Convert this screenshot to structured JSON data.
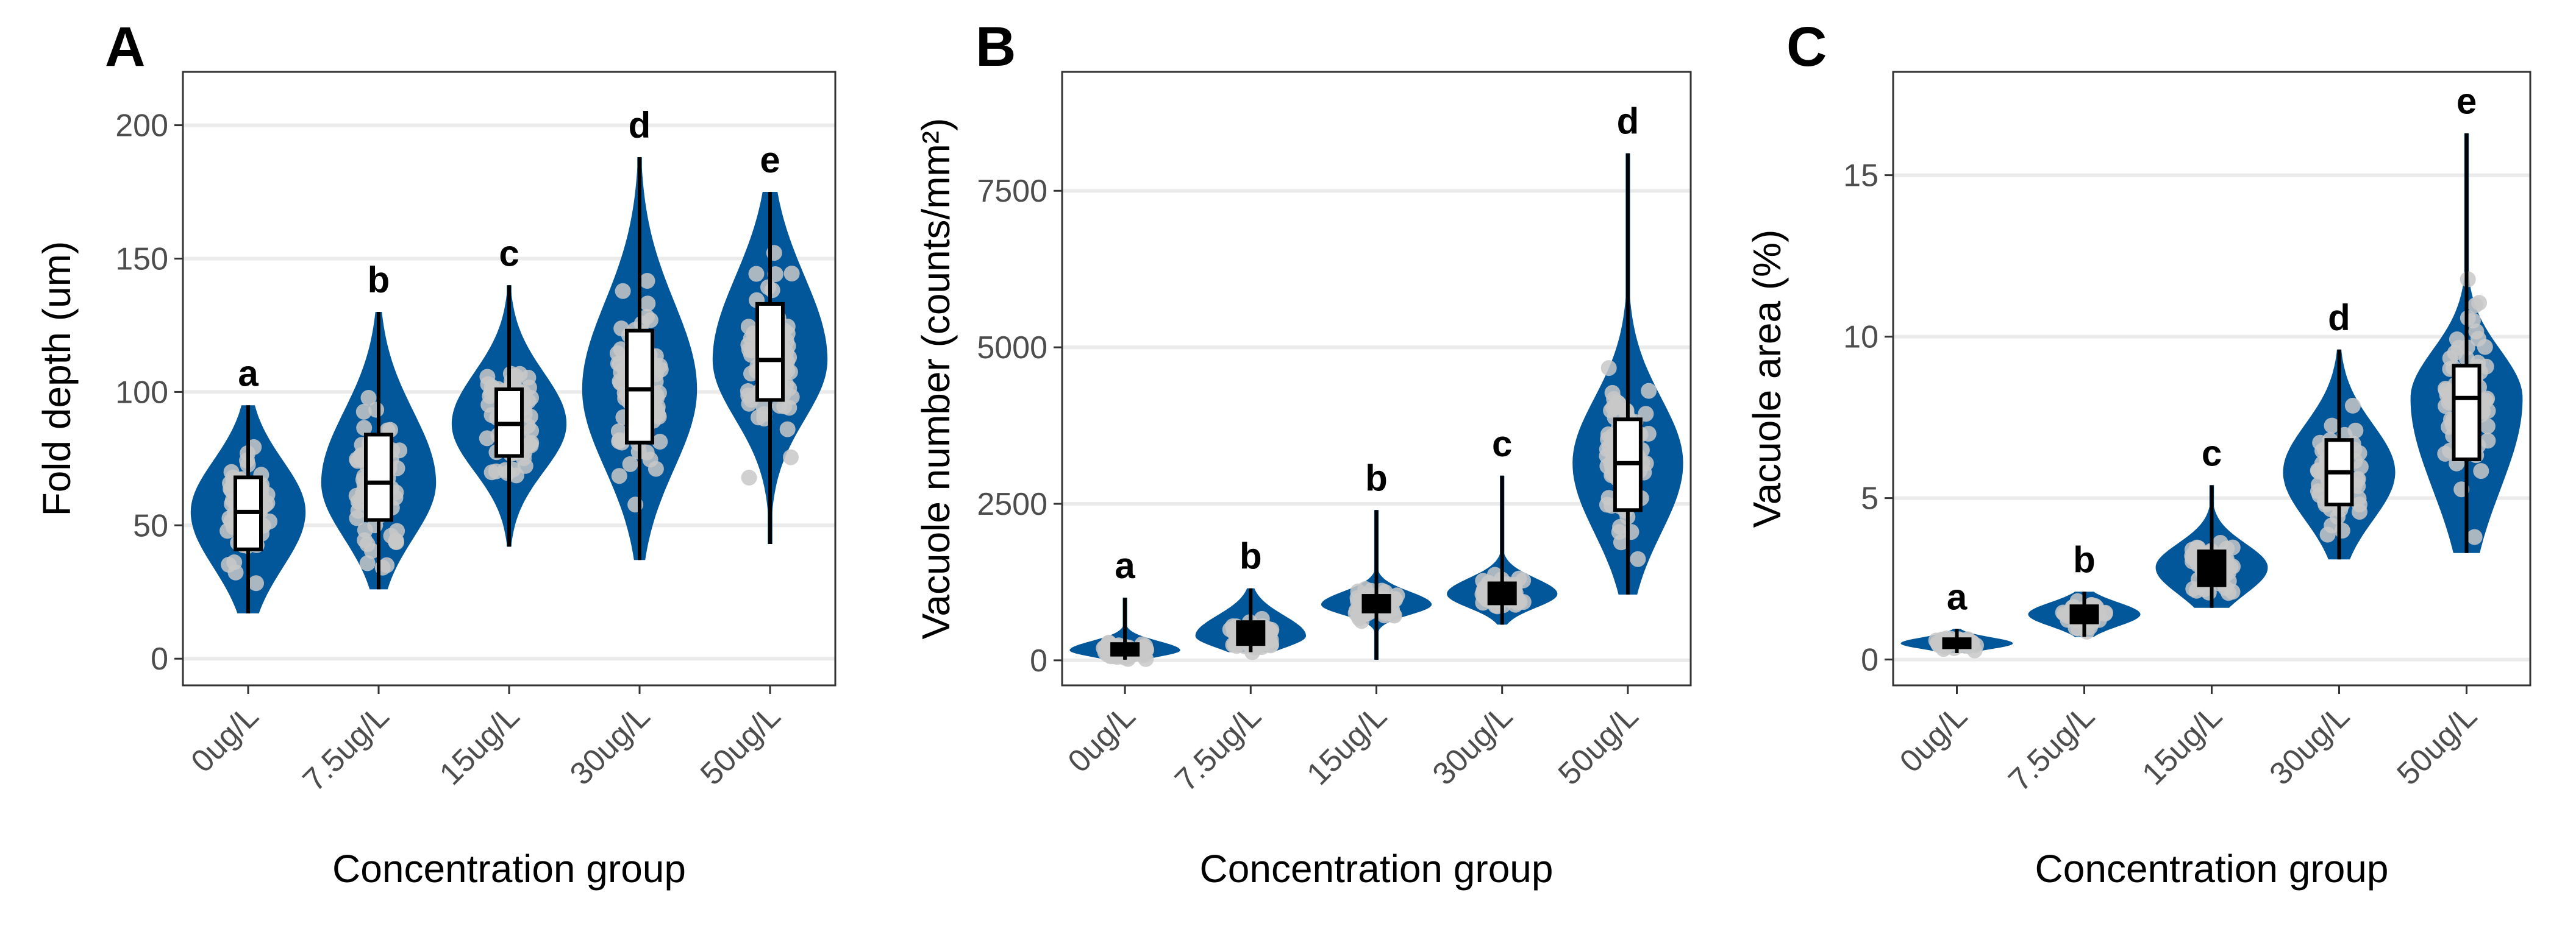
{
  "colors": {
    "violin": "#02569a",
    "point": "#c8c8c8",
    "box_fill": "#ffffff",
    "box_filled_small": "#000000",
    "grid": "#ebebeb",
    "frame": "#333333"
  },
  "chart_data": [
    {
      "type": "violin",
      "panel_label": "A",
      "xlabel": "Concentration group",
      "ylabel": "Fold depth (um)",
      "categories": [
        "0ug/L",
        "7.5ug/L",
        "15ug/L",
        "30ug/L",
        "50ug/L"
      ],
      "ylim": [
        -10,
        220
      ],
      "yticks": [
        0,
        50,
        100,
        150,
        200
      ],
      "ytick_labels": [
        "0",
        "50",
        "100",
        "150",
        "200"
      ],
      "grid": true,
      "groups": [
        {
          "min": 17,
          "q1": 41,
          "median": 55,
          "q3": 68,
          "max": 95,
          "letter": "a",
          "n_points": 60
        },
        {
          "min": 26,
          "q1": 52,
          "median": 66,
          "q3": 84,
          "max": 130,
          "letter": "b",
          "n_points": 70
        },
        {
          "min": 42,
          "q1": 76,
          "median": 88,
          "q3": 101,
          "max": 140,
          "letter": "c",
          "n_points": 70
        },
        {
          "min": 37,
          "q1": 81,
          "median": 101,
          "q3": 123,
          "max": 188,
          "letter": "d",
          "n_points": 80
        },
        {
          "min": 43,
          "q1": 97,
          "median": 112,
          "q3": 133,
          "max": 175,
          "letter": "e",
          "n_points": 75
        }
      ]
    },
    {
      "type": "violin",
      "panel_label": "B",
      "xlabel": "Concentration group",
      "ylabel": "Vacuole number (counts/mm²)",
      "categories": [
        "0ug/L",
        "7.5ug/L",
        "15ug/L",
        "30ug/L",
        "50ug/L"
      ],
      "ylim": [
        -400,
        9400
      ],
      "yticks": [
        0,
        2500,
        5000,
        7500
      ],
      "ytick_labels": [
        "0",
        "2500",
        "5000",
        "7500"
      ],
      "grid": true,
      "groups": [
        {
          "min": 10,
          "q1": 90,
          "median": 160,
          "q3": 260,
          "max": 1000,
          "letter": "a",
          "n_points": 50
        },
        {
          "min": 130,
          "q1": 260,
          "median": 390,
          "q3": 610,
          "max": 1150,
          "letter": "b",
          "n_points": 55
        },
        {
          "min": 10,
          "q1": 780,
          "median": 890,
          "q3": 1030,
          "max": 2400,
          "letter": "b",
          "n_points": 70
        },
        {
          "min": 570,
          "q1": 910,
          "median": 1060,
          "q3": 1230,
          "max": 2950,
          "letter": "c",
          "n_points": 50
        },
        {
          "min": 1050,
          "q1": 2400,
          "median": 3150,
          "q3": 3850,
          "max": 8100,
          "letter": "d",
          "n_points": 80
        }
      ]
    },
    {
      "type": "violin",
      "panel_label": "C",
      "xlabel": "Concentration group",
      "ylabel": "Vacuole area (%)",
      "categories": [
        "0ug/L",
        "7.5ug/L",
        "15ug/L",
        "30ug/L",
        "50ug/L"
      ],
      "ylim": [
        -0.8,
        18.2
      ],
      "yticks": [
        0,
        5,
        10,
        15
      ],
      "ytick_labels": [
        "0",
        "5",
        "10",
        "15"
      ],
      "grid": true,
      "groups": [
        {
          "min": 0.2,
          "q1": 0.38,
          "median": 0.5,
          "q3": 0.63,
          "max": 0.95,
          "letter": "a",
          "n_points": 40
        },
        {
          "min": 0.7,
          "q1": 1.15,
          "median": 1.4,
          "q3": 1.65,
          "max": 2.1,
          "letter": "b",
          "n_points": 45
        },
        {
          "min": 1.6,
          "q1": 2.3,
          "median": 2.85,
          "q3": 3.35,
          "max": 5.4,
          "letter": "c",
          "n_points": 55
        },
        {
          "min": 3.1,
          "q1": 4.8,
          "median": 5.8,
          "q3": 6.8,
          "max": 9.6,
          "letter": "d",
          "n_points": 70
        },
        {
          "min": 3.3,
          "q1": 6.2,
          "median": 8.1,
          "q3": 9.1,
          "max": 16.3,
          "letter": "e",
          "n_points": 80
        }
      ]
    }
  ]
}
